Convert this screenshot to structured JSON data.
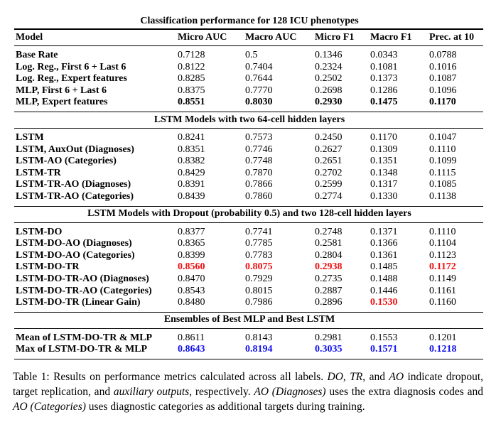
{
  "table": {
    "title": "Classification performance for 128 ICU phenotypes",
    "columns": [
      "Model",
      "Micro AUC",
      "Macro AUC",
      "Micro F1",
      "Macro F1",
      "Prec. at 10"
    ],
    "sections": [
      {
        "rows": [
          [
            "Base Rate",
            "0.7128",
            "0.5",
            "0.1346",
            "0.0343",
            "0.0788"
          ],
          [
            "Log. Reg., First 6 + Last 6",
            "0.8122",
            "0.7404",
            "0.2324",
            "0.1081",
            "0.1016"
          ],
          [
            "Log. Reg., Expert features",
            "0.8285",
            "0.7644",
            "0.2502",
            "0.1373",
            "0.1087"
          ],
          [
            "MLP, First 6 + Last 6",
            "0.8375",
            "0.7770",
            "0.2698",
            "0.1286",
            "0.1096"
          ],
          [
            "MLP, Expert features",
            "0.8551",
            "0.8030",
            "0.2930",
            "0.1475",
            "0.1170"
          ]
        ],
        "highlights": [
          {
            "row": 4,
            "cols": [
              1,
              2,
              3,
              4,
              5
            ],
            "color": "#000000"
          }
        ]
      },
      {
        "heading": "LSTM Models with two 64-cell hidden layers",
        "rows": [
          [
            "LSTM",
            "0.8241",
            "0.7573",
            "0.2450",
            "0.1170",
            "0.1047"
          ],
          [
            "LSTM, AuxOut (Diagnoses)",
            "0.8351",
            "0.7746",
            "0.2627",
            "0.1309",
            "0.1110"
          ],
          [
            "LSTM-AO (Categories)",
            "0.8382",
            "0.7748",
            "0.2651",
            "0.1351",
            "0.1099"
          ],
          [
            "LSTM-TR",
            "0.8429",
            "0.7870",
            "0.2702",
            "0.1348",
            "0.1115"
          ],
          [
            "LSTM-TR-AO (Diagnoses)",
            "0.8391",
            "0.7866",
            "0.2599",
            "0.1317",
            "0.1085"
          ],
          [
            "LSTM-TR-AO (Categories)",
            "0.8439",
            "0.7860",
            "0.2774",
            "0.1330",
            "0.1138"
          ]
        ],
        "highlights": []
      },
      {
        "heading": "LSTM Models with Dropout (probability 0.5) and two 128-cell hidden layers",
        "rows": [
          [
            "LSTM-DO",
            "0.8377",
            "0.7741",
            "0.2748",
            "0.1371",
            "0.1110"
          ],
          [
            "LSTM-DO-AO (Diagnoses)",
            "0.8365",
            "0.7785",
            "0.2581",
            "0.1366",
            "0.1104"
          ],
          [
            "LSTM-DO-AO (Categories)",
            "0.8399",
            "0.7783",
            "0.2804",
            "0.1361",
            "0.1123"
          ],
          [
            "LSTM-DO-TR",
            "0.8560",
            "0.8075",
            "0.2938",
            "0.1485",
            "0.1172"
          ],
          [
            "LSTM-DO-TR-AO (Diagnoses)",
            "0.8470",
            "0.7929",
            "0.2735",
            "0.1488",
            "0.1149"
          ],
          [
            "LSTM-DO-TR-AO (Categories)",
            "0.8543",
            "0.8015",
            "0.2887",
            "0.1446",
            "0.1161"
          ],
          [
            "LSTM-DO-TR (Linear Gain)",
            "0.8480",
            "0.7986",
            "0.2896",
            "0.1530",
            "0.1160"
          ]
        ],
        "highlights": [
          {
            "row": 3,
            "cols": [
              1,
              2,
              3,
              5
            ],
            "color": "#ee1111"
          },
          {
            "row": 6,
            "cols": [
              4
            ],
            "color": "#ee1111"
          }
        ]
      },
      {
        "heading": "Ensembles of Best MLP and Best LSTM",
        "rows": [
          [
            "Mean of LSTM-DO-TR & MLP",
            "0.8611",
            "0.8143",
            "0.2981",
            "0.1553",
            "0.1201"
          ],
          [
            "Max of LSTM-DO-TR & MLP",
            "0.8643",
            "0.8194",
            "0.3035",
            "0.1571",
            "0.1218"
          ]
        ],
        "highlights": [
          {
            "row": 1,
            "cols": [
              1,
              2,
              3,
              4,
              5
            ],
            "color": "#1111ee"
          }
        ]
      }
    ]
  },
  "caption": [
    {
      "text": "Table 1: Results on performance metrics calculated across all labels. "
    },
    {
      "text": "DO",
      "italic": true
    },
    {
      "text": ", "
    },
    {
      "text": "TR",
      "italic": true
    },
    {
      "text": ", and "
    },
    {
      "text": "AO",
      "italic": true
    },
    {
      "text": " indicate dropout, target replication, and "
    },
    {
      "text": "auxiliary outputs",
      "italic": true
    },
    {
      "text": ", respectively. "
    },
    {
      "text": "AO (Diagnoses)",
      "italic": true
    },
    {
      "text": " uses the extra diagnosis codes and "
    },
    {
      "text": "AO (Categories)",
      "italic": true
    },
    {
      "text": " uses diagnostic categories as additional targets during training."
    }
  ]
}
